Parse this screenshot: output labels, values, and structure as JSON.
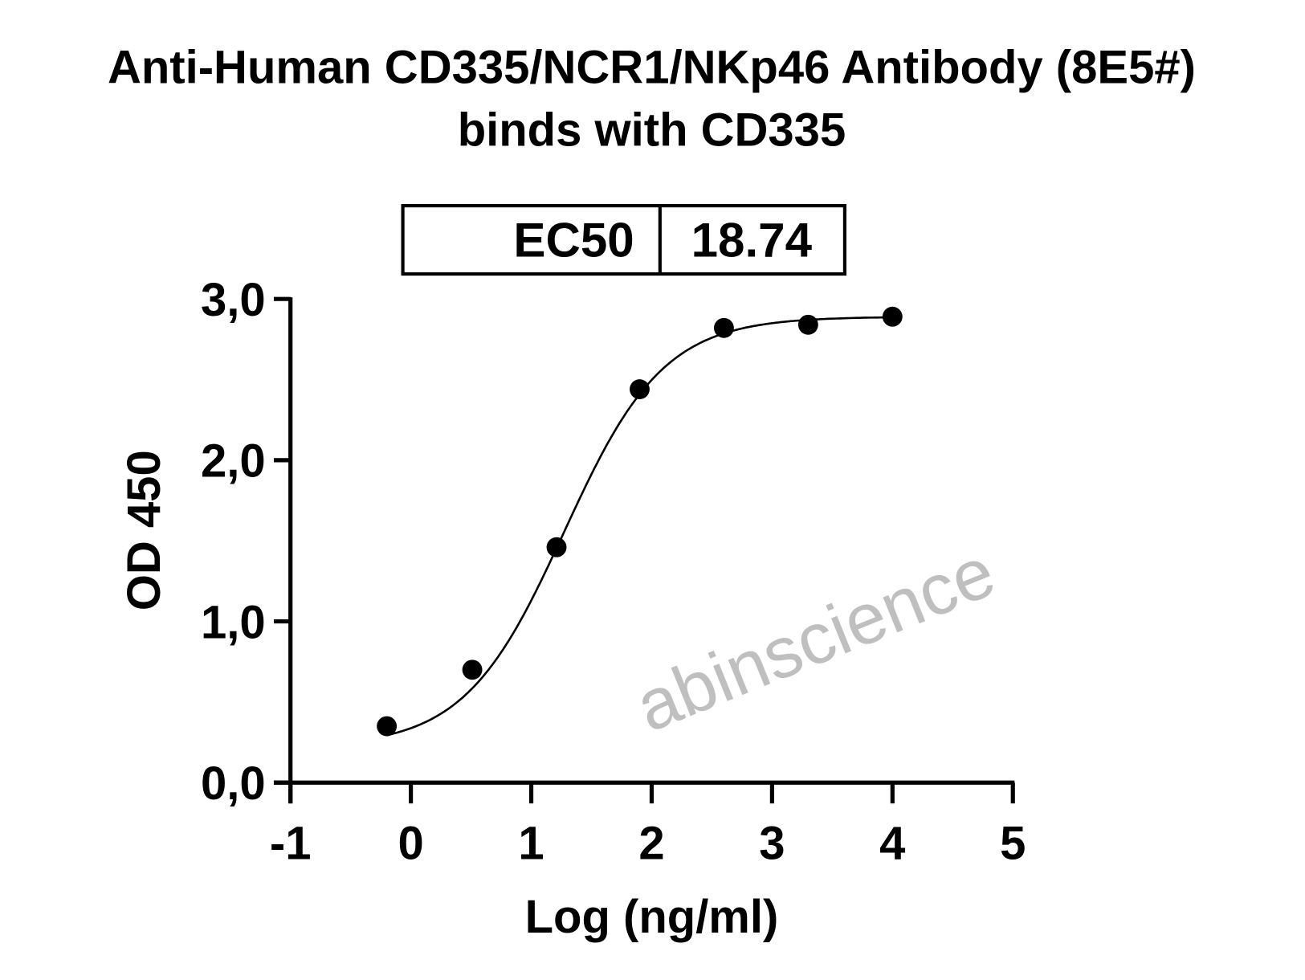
{
  "chart_data": {
    "type": "scatter",
    "title_lines": [
      "Anti-Human CD335/NCR1/NKp46 Antibody (8E5#)",
      "binds with CD335"
    ],
    "xlabel": "Log (ng/ml)",
    "ylabel": "OD 450",
    "xlim": [
      -1,
      5
    ],
    "ylim": [
      0,
      3.0
    ],
    "x_ticks": [
      -1,
      0,
      1,
      2,
      3,
      4,
      5
    ],
    "x_tick_labels": [
      "-1",
      "0",
      "1",
      "2",
      "3",
      "4",
      "5"
    ],
    "y_ticks": [
      0,
      1,
      2,
      3
    ],
    "y_tick_labels": [
      "0,0",
      "1,0",
      "2,0",
      "3,0"
    ],
    "grid": false,
    "series": [
      {
        "x": [
          -0.2,
          0.51,
          1.21,
          1.9,
          2.6,
          3.3,
          4.0
        ],
        "y": [
          0.35,
          0.7,
          1.46,
          2.44,
          2.82,
          2.84,
          2.89
        ],
        "fit": "4PL sigmoid"
      }
    ],
    "ec50_table": {
      "label": "EC50",
      "value": "18.74"
    }
  },
  "watermark": "abinscience",
  "colors": {
    "line": "#000000",
    "watermark": "#b4b4b4"
  }
}
